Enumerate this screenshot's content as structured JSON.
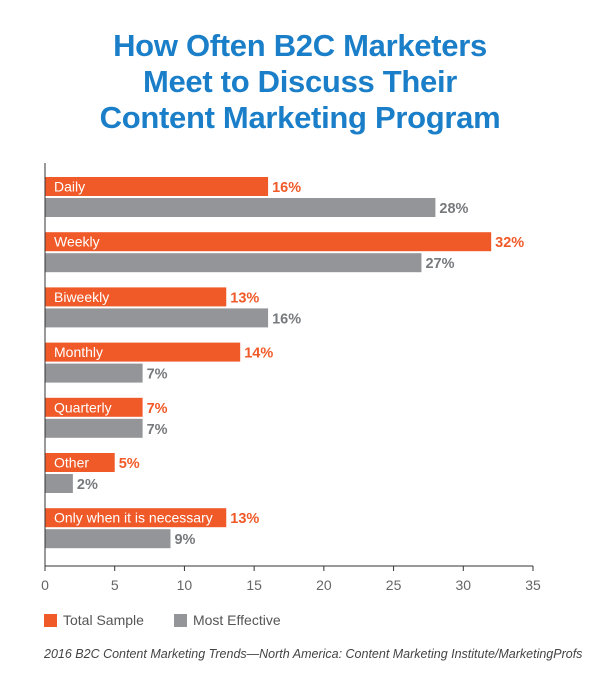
{
  "title_lines": [
    "How Often B2C Marketers",
    "Meet to Discuss Their",
    "Content Marketing Program"
  ],
  "source": "2016 B2C Content Marketing Trends—North America: Content Marketing Institute/MarketingProfs",
  "colors": {
    "total": "#f05a28",
    "effective": "#939598",
    "title": "#1a7fc8"
  },
  "chart_data": {
    "type": "bar",
    "orientation": "horizontal",
    "categories": [
      "Daily",
      "Weekly",
      "Biweekly",
      "Monthly",
      "Quarterly",
      "Other",
      "Only when it is necessary"
    ],
    "series": [
      {
        "name": "Total Sample",
        "values": [
          16,
          32,
          13,
          14,
          7,
          5,
          13
        ],
        "labels": [
          "16%",
          "32%",
          "13%",
          "14%",
          "7%",
          "5%",
          "13%"
        ]
      },
      {
        "name": "Most Effective",
        "values": [
          28,
          27,
          16,
          7,
          7,
          2,
          9
        ],
        "labels": [
          "28%",
          "27%",
          "16%",
          "7%",
          "7%",
          "2%",
          "9%"
        ]
      }
    ],
    "xlim": [
      0,
      35
    ],
    "xticks": [
      0,
      5,
      10,
      15,
      20,
      25,
      30,
      35
    ],
    "legend_position": "bottom-left"
  }
}
